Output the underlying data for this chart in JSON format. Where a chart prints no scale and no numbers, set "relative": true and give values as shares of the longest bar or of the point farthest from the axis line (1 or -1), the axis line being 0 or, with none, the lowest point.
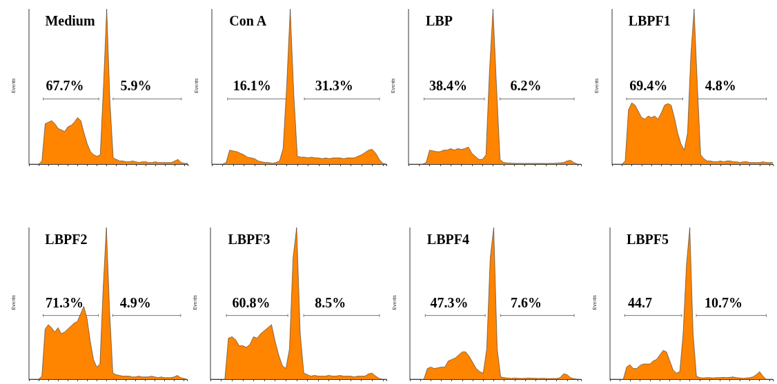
{
  "chart_data": [
    {
      "type": "area",
      "title": "Medium",
      "ylabel": "Events",
      "relative": true,
      "annotations": [
        "67.7%",
        "5.9%"
      ],
      "categories": [
        null,
        null,
        null,
        null,
        null,
        null,
        null,
        null,
        null,
        null,
        null,
        null,
        null,
        null,
        null,
        null,
        null,
        null,
        null,
        null,
        null,
        null,
        null,
        null,
        null,
        null,
        null,
        null,
        null,
        null,
        null,
        null,
        null,
        null,
        null,
        null,
        null,
        null,
        null,
        null,
        null,
        null,
        null,
        null,
        null,
        null,
        null,
        null,
        null,
        null
      ],
      "series": [
        {
          "color": "#ff8400",
          "values": [
            0,
            0,
            0,
            0,
            0.02,
            0.26,
            0.27,
            0.28,
            0.26,
            0.23,
            0.22,
            0.21,
            0.24,
            0.25,
            0.27,
            0.3,
            0.28,
            0.2,
            0.13,
            0.08,
            0.06,
            0.05,
            0.06,
            0.5,
            1,
            0.4,
            0.04,
            0.03,
            0.02,
            0.02,
            0.015,
            0.015,
            0.02,
            0.015,
            0.01,
            0.015,
            0.015,
            0.01,
            0.01,
            0.015,
            0.01,
            0.01,
            0.01,
            0.01,
            0.01,
            0.02,
            0.03,
            0.01,
            0.005,
            0.005
          ]
        }
      ]
    },
    {
      "type": "area",
      "title": "Con A",
      "ylabel": "Events",
      "relative": true,
      "annotations": [
        "16.1%",
        "31.3%"
      ],
      "categories": [
        null,
        null,
        null,
        null,
        null,
        null,
        null,
        null,
        null,
        null,
        null,
        null,
        null,
        null,
        null,
        null,
        null,
        null,
        null,
        null,
        null,
        null,
        null,
        null,
        null,
        null,
        null,
        null,
        null,
        null,
        null,
        null,
        null,
        null,
        null,
        null,
        null,
        null,
        null,
        null,
        null,
        null,
        null,
        null,
        null,
        null,
        null,
        null,
        null,
        null
      ],
      "series": [
        {
          "color": "#ff8400",
          "values": [
            0,
            0,
            0,
            0,
            0.01,
            0.09,
            0.085,
            0.08,
            0.07,
            0.06,
            0.045,
            0.04,
            0.035,
            0.02,
            0.015,
            0.01,
            0.01,
            0.005,
            0.01,
            0.02,
            0.1,
            0.5,
            1,
            0.45,
            0.05,
            0.045,
            0.045,
            0.04,
            0.045,
            0.04,
            0.04,
            0.035,
            0.04,
            0.035,
            0.04,
            0.04,
            0.04,
            0.035,
            0.04,
            0.04,
            0.04,
            0.05,
            0.06,
            0.075,
            0.09,
            0.095,
            0.07,
            0.03,
            0.005,
            0
          ]
        }
      ]
    },
    {
      "type": "area",
      "title": "LBP",
      "ylabel": "Events",
      "relative": true,
      "annotations": [
        "38.4%",
        "6.2%"
      ],
      "categories": [
        null,
        null,
        null,
        null,
        null,
        null,
        null,
        null,
        null,
        null,
        null,
        null,
        null,
        null,
        null,
        null,
        null,
        null,
        null,
        null,
        null,
        null,
        null,
        null,
        null,
        null,
        null,
        null,
        null,
        null,
        null,
        null,
        null,
        null,
        null,
        null,
        null,
        null,
        null,
        null,
        null,
        null,
        null,
        null,
        null,
        null,
        null,
        null,
        null,
        null
      ],
      "series": [
        {
          "color": "#ff8400",
          "values": [
            0,
            0,
            0,
            0,
            0,
            0.01,
            0.09,
            0.085,
            0.08,
            0.08,
            0.09,
            0.09,
            0.1,
            0.09,
            0.1,
            0.095,
            0.1,
            0.11,
            0.07,
            0.05,
            0.03,
            0.03,
            0.06,
            0.6,
            1,
            0.5,
            0.03,
            0.01,
            0.008,
            0.006,
            0.005,
            0.005,
            0.005,
            0.004,
            0.005,
            0.005,
            0.004,
            0.005,
            0.005,
            0.004,
            0.005,
            0.005,
            0.006,
            0.008,
            0.01,
            0.02,
            0.025,
            0.01,
            0,
            0
          ]
        }
      ]
    },
    {
      "type": "area",
      "title": "LBPF1",
      "ylabel": "Events",
      "relative": true,
      "annotations": [
        "69.4%",
        "4.8%"
      ],
      "categories": [
        null,
        null,
        null,
        null,
        null,
        null,
        null,
        null,
        null,
        null,
        null,
        null,
        null,
        null,
        null,
        null,
        null,
        null,
        null,
        null,
        null,
        null,
        null,
        null,
        null,
        null,
        null,
        null,
        null,
        null,
        null,
        null,
        null,
        null,
        null,
        null,
        null,
        null,
        null,
        null,
        null,
        null,
        null,
        null,
        null,
        null,
        null,
        null,
        null,
        null
      ],
      "series": [
        {
          "color": "#ff8400",
          "values": [
            0,
            0,
            0,
            0,
            0.02,
            0.35,
            0.395,
            0.38,
            0.34,
            0.3,
            0.29,
            0.31,
            0.3,
            0.31,
            0.29,
            0.33,
            0.38,
            0.39,
            0.38,
            0.3,
            0.2,
            0.13,
            0.09,
            0.2,
            0.7,
            1,
            0.5,
            0.06,
            0.035,
            0.02,
            0.02,
            0.015,
            0.015,
            0.02,
            0.015,
            0.02,
            0.02,
            0.015,
            0.015,
            0.01,
            0.015,
            0.015,
            0.01,
            0.01,
            0.01,
            0.01,
            0.015,
            0.01,
            0.01,
            0.01
          ]
        }
      ]
    },
    {
      "type": "area",
      "title": "LBPF2",
      "ylabel": "Events",
      "relative": true,
      "annotations": [
        "71.3%",
        "4.9%"
      ],
      "categories": [
        null,
        null,
        null,
        null,
        null,
        null,
        null,
        null,
        null,
        null,
        null,
        null,
        null,
        null,
        null,
        null,
        null,
        null,
        null,
        null,
        null,
        null,
        null,
        null,
        null,
        null,
        null,
        null,
        null,
        null,
        null,
        null,
        null,
        null,
        null,
        null,
        null,
        null,
        null,
        null,
        null,
        null,
        null,
        null,
        null,
        null,
        null,
        null,
        null,
        null
      ],
      "series": [
        {
          "color": "#ff8400",
          "values": [
            0,
            0,
            0,
            0,
            0.02,
            0.33,
            0.36,
            0.34,
            0.31,
            0.34,
            0.3,
            0.31,
            0.33,
            0.35,
            0.37,
            0.38,
            0.43,
            0.48,
            0.4,
            0.25,
            0.13,
            0.08,
            0.1,
            0.6,
            1,
            0.45,
            0.04,
            0.03,
            0.025,
            0.02,
            0.02,
            0.02,
            0.015,
            0.015,
            0.02,
            0.015,
            0.015,
            0.015,
            0.02,
            0.015,
            0.01,
            0.015,
            0.01,
            0.01,
            0.01,
            0.015,
            0.025,
            0.01,
            0.005,
            0
          ]
        }
      ]
    },
    {
      "type": "area",
      "title": "LBPF3",
      "ylabel": "Events",
      "relative": true,
      "annotations": [
        "60.8%",
        "8.5%"
      ],
      "categories": [
        null,
        null,
        null,
        null,
        null,
        null,
        null,
        null,
        null,
        null,
        null,
        null,
        null,
        null,
        null,
        null,
        null,
        null,
        null,
        null,
        null,
        null,
        null,
        null,
        null,
        null,
        null,
        null,
        null,
        null,
        null,
        null,
        null,
        null,
        null,
        null,
        null,
        null,
        null,
        null,
        null,
        null,
        null,
        null,
        null,
        null,
        null,
        null,
        null,
        null
      ],
      "series": [
        {
          "color": "#ff8400",
          "values": [
            0,
            0,
            0,
            0,
            0,
            0.27,
            0.28,
            0.26,
            0.22,
            0.22,
            0.21,
            0.23,
            0.28,
            0.27,
            0.3,
            0.32,
            0.34,
            0.36,
            0.25,
            0.16,
            0.09,
            0.07,
            0.2,
            0.8,
            1,
            0.3,
            0.04,
            0.03,
            0.02,
            0.025,
            0.02,
            0.02,
            0.02,
            0.025,
            0.02,
            0.02,
            0.025,
            0.02,
            0.02,
            0.02,
            0.015,
            0.02,
            0.02,
            0.02,
            0.035,
            0.04,
            0.02,
            0.005,
            0,
            0
          ]
        }
      ]
    },
    {
      "type": "area",
      "title": "LBPF4",
      "ylabel": "Events",
      "relative": true,
      "annotations": [
        "47.3%",
        "7.6%"
      ],
      "categories": [
        null,
        null,
        null,
        null,
        null,
        null,
        null,
        null,
        null,
        null,
        null,
        null,
        null,
        null,
        null,
        null,
        null,
        null,
        null,
        null,
        null,
        null,
        null,
        null,
        null,
        null,
        null,
        null,
        null,
        null,
        null,
        null,
        null,
        null,
        null,
        null,
        null,
        null,
        null,
        null,
        null,
        null,
        null,
        null,
        null,
        null,
        null,
        null,
        null,
        null
      ],
      "series": [
        {
          "color": "#ff8400",
          "values": [
            0,
            0,
            0,
            0,
            0,
            0.07,
            0.08,
            0.07,
            0.075,
            0.08,
            0.08,
            0.12,
            0.13,
            0.14,
            0.16,
            0.18,
            0.18,
            0.15,
            0.11,
            0.07,
            0.05,
            0.04,
            0.2,
            0.8,
            1,
            0.2,
            0.015,
            0.01,
            0.008,
            0.005,
            0.008,
            0.006,
            0.005,
            0.006,
            0.008,
            0.006,
            0.006,
            0.005,
            0.006,
            0.005,
            0.004,
            0.005,
            0.004,
            0.01,
            0.035,
            0.03,
            0.01,
            0.003,
            0,
            0
          ]
        }
      ]
    },
    {
      "type": "area",
      "title": "LBPF5",
      "ylabel": "Events",
      "relative": true,
      "annotations": [
        "44.7",
        "10.7%"
      ],
      "categories": [
        null,
        null,
        null,
        null,
        null,
        null,
        null,
        null,
        null,
        null,
        null,
        null,
        null,
        null,
        null,
        null,
        null,
        null,
        null,
        null,
        null,
        null,
        null,
        null,
        null,
        null,
        null,
        null,
        null,
        null,
        null,
        null,
        null,
        null,
        null,
        null,
        null,
        null,
        null,
        null,
        null,
        null,
        null,
        null,
        null,
        null,
        null,
        null,
        null,
        null
      ],
      "series": [
        {
          "color": "#ff8400",
          "values": [
            0,
            0,
            0,
            0,
            0,
            0.08,
            0.095,
            0.07,
            0.07,
            0.09,
            0.1,
            0.1,
            0.1,
            0.12,
            0.13,
            0.16,
            0.19,
            0.18,
            0.12,
            0.06,
            0.04,
            0.05,
            0.3,
            0.75,
            1,
            0.3,
            0.02,
            0.01,
            0.008,
            0.01,
            0.01,
            0.008,
            0.01,
            0.01,
            0.012,
            0.01,
            0.012,
            0.015,
            0.01,
            0.008,
            0.006,
            0.008,
            0.01,
            0.015,
            0.03,
            0.05,
            0.02,
            0,
            0,
            0
          ]
        }
      ]
    }
  ]
}
